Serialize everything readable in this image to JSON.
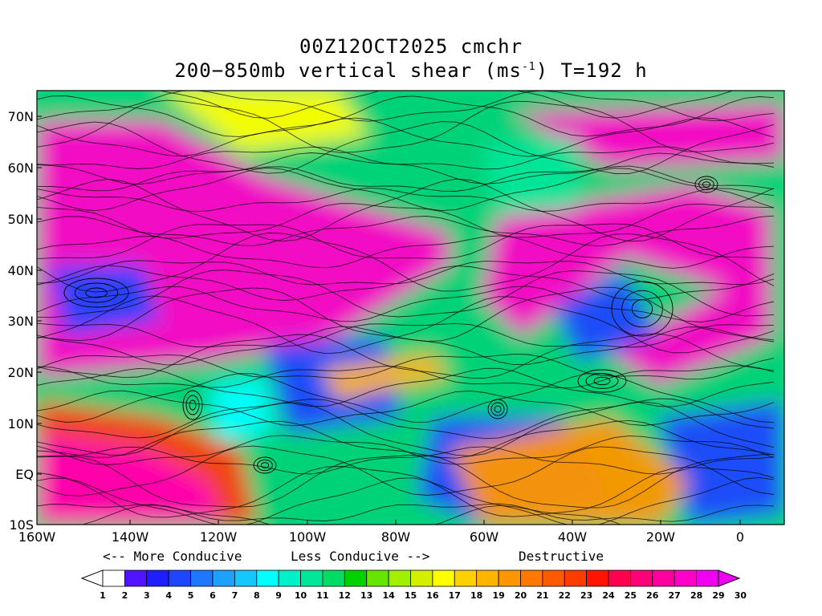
{
  "title": {
    "line1": "00Z12OCT2025 cmchr",
    "line2_a": "200−850mb vertical shear (ms",
    "line2_sup": "-1",
    "line2_b": ") T=192 h"
  },
  "axes": {
    "x_ticks": [
      "160W",
      "140W",
      "120W",
      "100W",
      "80W",
      "60W",
      "40W",
      "20W",
      "0"
    ],
    "y_ticks": [
      "70N",
      "60N",
      "50N",
      "40N",
      "30N",
      "20N",
      "10N",
      "EQ",
      "10S"
    ]
  },
  "guide": {
    "more": "<-- More Conducive",
    "less": "Less Conducive -->",
    "destructive": "Destructive"
  },
  "colorbar": {
    "labels": [
      "1",
      "2",
      "3",
      "4",
      "5",
      "6",
      "7",
      "8",
      "9",
      "10",
      "11",
      "12",
      "13",
      "14",
      "15",
      "16",
      "17",
      "18",
      "19",
      "20",
      "21",
      "22",
      "23",
      "24",
      "25",
      "26",
      "27",
      "28",
      "29",
      "30"
    ],
    "colors": [
      "#ffffff",
      "#5014ff",
      "#1e1eff",
      "#1e46ff",
      "#1e78ff",
      "#1ea0ff",
      "#14c8ff",
      "#00ffff",
      "#00f0c8",
      "#00e69a",
      "#00dc64",
      "#00d200",
      "#64e600",
      "#a0f000",
      "#d2f000",
      "#ffff00",
      "#ffd200",
      "#ffb400",
      "#ff9600",
      "#ff7800",
      "#ff5a00",
      "#ff3c00",
      "#ff1400",
      "#ff0050",
      "#ff0078",
      "#ff00a0",
      "#ff00c8",
      "#f000f0"
    ]
  },
  "colors": {
    "low_shear": "#1e46ff",
    "moderate_shear": "#00d200",
    "high_shear": "#f000f0",
    "streamlines": "#000000"
  }
}
